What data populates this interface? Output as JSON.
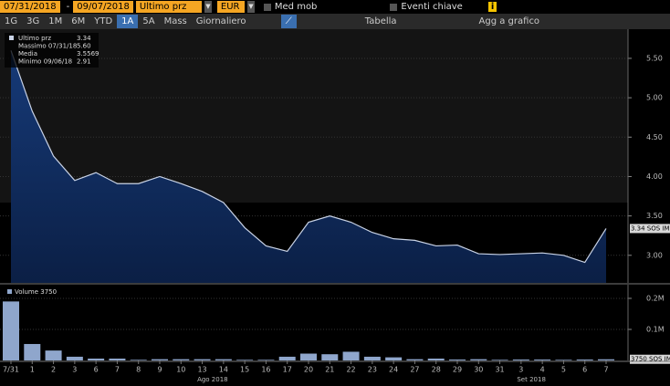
{
  "toolbar": {
    "start": "07/31/2018",
    "dash": "-",
    "end": "09/07/2018",
    "field": "Ultimo prz",
    "currency": "EUR",
    "moving_avg": "Med mob",
    "events": "Eventi chiave",
    "info": "i",
    "ranges": [
      "1G",
      "3G",
      "1M",
      "6M",
      "YTD",
      "1A",
      "5A",
      "Mass"
    ],
    "period": "Giornaliero",
    "table": "Tabella",
    "add": "Agg a grafico"
  },
  "chart_data": [
    {
      "type": "area",
      "categories": [
        "7/31",
        "1",
        "2",
        "3",
        "6",
        "7",
        "8",
        "9",
        "10",
        "13",
        "14",
        "15",
        "16",
        "17",
        "20",
        "21",
        "22",
        "23",
        "24",
        "27",
        "28",
        "29",
        "30",
        "31",
        "3",
        "4",
        "5",
        "6",
        "7"
      ],
      "month_labels": [
        "Ago 2018",
        "Set 2018"
      ],
      "series": [
        {
          "name": "Ultimo prz",
          "color": "#c9d3e6",
          "values": [
            5.6,
            4.83,
            4.26,
            3.95,
            4.05,
            3.91,
            3.91,
            4.0,
            3.91,
            3.81,
            3.67,
            3.35,
            3.12,
            3.05,
            3.42,
            3.5,
            3.42,
            3.29,
            3.21,
            3.19,
            3.12,
            3.13,
            3.02,
            3.01,
            3.02,
            3.03,
            3.0,
            2.91,
            3.34
          ]
        }
      ],
      "legend": [
        "Ultimo prz",
        "3.34",
        "Massimo 07/31/18",
        "5.60",
        "Media",
        "3.5569",
        "Minimo 09/06/18",
        "2.91"
      ],
      "last_label": "3.34 SOS IM",
      "ylim": [
        2.65,
        5.87
      ],
      "yticks": [
        {
          "value": 3,
          "label": "3.00"
        },
        {
          "value": 3.5,
          "label": "3.50"
        },
        {
          "value": 4,
          "label": "4.00"
        },
        {
          "value": 4.5,
          "label": "4.50"
        },
        {
          "value": 5,
          "label": "5.00"
        },
        {
          "value": 5.5,
          "label": "5.50"
        }
      ]
    },
    {
      "type": "bar",
      "color": "#8fa6cc",
      "series": [
        {
          "name": "Volume",
          "color": "#8fa6cc",
          "values": [
            190000,
            53000,
            32000,
            12000,
            6000,
            6000,
            2000,
            4000,
            4000,
            4000,
            4000,
            2000,
            2000,
            12000,
            22000,
            20000,
            28000,
            12000,
            10000,
            4000,
            6000,
            3000,
            4000,
            2000,
            3000,
            3000,
            2000,
            3000,
            3750
          ]
        }
      ],
      "legend": [
        "Volume 3750"
      ],
      "last_label": "3750 SOS IM",
      "ylim": [
        0,
        244000
      ],
      "yticks": [
        {
          "value": 100000,
          "label": "0.1M"
        },
        {
          "value": 200000,
          "label": "0.2M"
        }
      ]
    }
  ]
}
